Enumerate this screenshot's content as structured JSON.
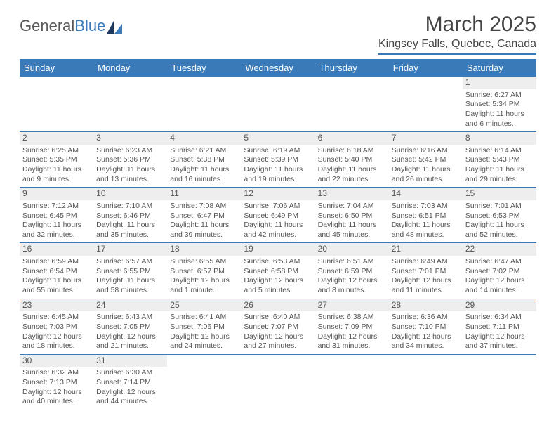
{
  "header": {
    "logo_main": "General",
    "logo_accent": "Blue",
    "month_title": "March 2025",
    "location": "Kingsey Falls, Quebec, Canada"
  },
  "colors": {
    "header_bg": "#3a7ab8",
    "header_text": "#ffffff",
    "daynum_bg": "#eeeeee",
    "border": "#3a7ab8",
    "body_text": "#555555"
  },
  "calendar": {
    "day_headers": [
      "Sunday",
      "Monday",
      "Tuesday",
      "Wednesday",
      "Thursday",
      "Friday",
      "Saturday"
    ],
    "weeks": [
      [
        null,
        null,
        null,
        null,
        null,
        null,
        {
          "n": "1",
          "sunrise": "6:27 AM",
          "sunset": "5:34 PM",
          "daylight": "11 hours and 6 minutes."
        }
      ],
      [
        {
          "n": "2",
          "sunrise": "6:25 AM",
          "sunset": "5:35 PM",
          "daylight": "11 hours and 9 minutes."
        },
        {
          "n": "3",
          "sunrise": "6:23 AM",
          "sunset": "5:36 PM",
          "daylight": "11 hours and 13 minutes."
        },
        {
          "n": "4",
          "sunrise": "6:21 AM",
          "sunset": "5:38 PM",
          "daylight": "11 hours and 16 minutes."
        },
        {
          "n": "5",
          "sunrise": "6:19 AM",
          "sunset": "5:39 PM",
          "daylight": "11 hours and 19 minutes."
        },
        {
          "n": "6",
          "sunrise": "6:18 AM",
          "sunset": "5:40 PM",
          "daylight": "11 hours and 22 minutes."
        },
        {
          "n": "7",
          "sunrise": "6:16 AM",
          "sunset": "5:42 PM",
          "daylight": "11 hours and 26 minutes."
        },
        {
          "n": "8",
          "sunrise": "6:14 AM",
          "sunset": "5:43 PM",
          "daylight": "11 hours and 29 minutes."
        }
      ],
      [
        {
          "n": "9",
          "sunrise": "7:12 AM",
          "sunset": "6:45 PM",
          "daylight": "11 hours and 32 minutes."
        },
        {
          "n": "10",
          "sunrise": "7:10 AM",
          "sunset": "6:46 PM",
          "daylight": "11 hours and 35 minutes."
        },
        {
          "n": "11",
          "sunrise": "7:08 AM",
          "sunset": "6:47 PM",
          "daylight": "11 hours and 39 minutes."
        },
        {
          "n": "12",
          "sunrise": "7:06 AM",
          "sunset": "6:49 PM",
          "daylight": "11 hours and 42 minutes."
        },
        {
          "n": "13",
          "sunrise": "7:04 AM",
          "sunset": "6:50 PM",
          "daylight": "11 hours and 45 minutes."
        },
        {
          "n": "14",
          "sunrise": "7:03 AM",
          "sunset": "6:51 PM",
          "daylight": "11 hours and 48 minutes."
        },
        {
          "n": "15",
          "sunrise": "7:01 AM",
          "sunset": "6:53 PM",
          "daylight": "11 hours and 52 minutes."
        }
      ],
      [
        {
          "n": "16",
          "sunrise": "6:59 AM",
          "sunset": "6:54 PM",
          "daylight": "11 hours and 55 minutes."
        },
        {
          "n": "17",
          "sunrise": "6:57 AM",
          "sunset": "6:55 PM",
          "daylight": "11 hours and 58 minutes."
        },
        {
          "n": "18",
          "sunrise": "6:55 AM",
          "sunset": "6:57 PM",
          "daylight": "12 hours and 1 minute."
        },
        {
          "n": "19",
          "sunrise": "6:53 AM",
          "sunset": "6:58 PM",
          "daylight": "12 hours and 5 minutes."
        },
        {
          "n": "20",
          "sunrise": "6:51 AM",
          "sunset": "6:59 PM",
          "daylight": "12 hours and 8 minutes."
        },
        {
          "n": "21",
          "sunrise": "6:49 AM",
          "sunset": "7:01 PM",
          "daylight": "12 hours and 11 minutes."
        },
        {
          "n": "22",
          "sunrise": "6:47 AM",
          "sunset": "7:02 PM",
          "daylight": "12 hours and 14 minutes."
        }
      ],
      [
        {
          "n": "23",
          "sunrise": "6:45 AM",
          "sunset": "7:03 PM",
          "daylight": "12 hours and 18 minutes."
        },
        {
          "n": "24",
          "sunrise": "6:43 AM",
          "sunset": "7:05 PM",
          "daylight": "12 hours and 21 minutes."
        },
        {
          "n": "25",
          "sunrise": "6:41 AM",
          "sunset": "7:06 PM",
          "daylight": "12 hours and 24 minutes."
        },
        {
          "n": "26",
          "sunrise": "6:40 AM",
          "sunset": "7:07 PM",
          "daylight": "12 hours and 27 minutes."
        },
        {
          "n": "27",
          "sunrise": "6:38 AM",
          "sunset": "7:09 PM",
          "daylight": "12 hours and 31 minutes."
        },
        {
          "n": "28",
          "sunrise": "6:36 AM",
          "sunset": "7:10 PM",
          "daylight": "12 hours and 34 minutes."
        },
        {
          "n": "29",
          "sunrise": "6:34 AM",
          "sunset": "7:11 PM",
          "daylight": "12 hours and 37 minutes."
        }
      ],
      [
        {
          "n": "30",
          "sunrise": "6:32 AM",
          "sunset": "7:13 PM",
          "daylight": "12 hours and 40 minutes."
        },
        {
          "n": "31",
          "sunrise": "6:30 AM",
          "sunset": "7:14 PM",
          "daylight": "12 hours and 44 minutes."
        },
        null,
        null,
        null,
        null,
        null
      ]
    ],
    "labels": {
      "sunrise": "Sunrise:",
      "sunset": "Sunset:",
      "daylight": "Daylight:"
    }
  }
}
